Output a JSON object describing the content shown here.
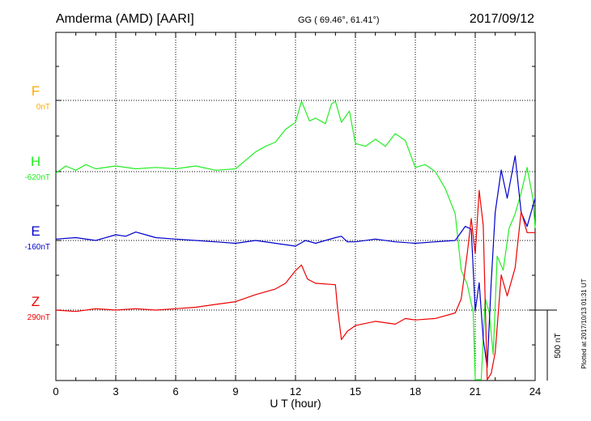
{
  "header": {
    "station": "Amderma (AMD)  [AARI]",
    "coords": "GG ( 69.46°,  61.41°)",
    "date": "2017/09/12"
  },
  "footer": {
    "plotted": "Plotted at 2017/10/13 01:31  UT"
  },
  "chart_data": {
    "type": "line",
    "xlabel": "U T (hour)",
    "xlim": [
      0,
      24
    ],
    "x_ticks": [
      "0",
      "3",
      "6",
      "9",
      "12",
      "15",
      "18",
      "21",
      "24"
    ],
    "scale_bar_label": "500 nT",
    "scale_bar_nT": 500,
    "grid": true,
    "series": [
      {
        "name": "F",
        "baseline_label": "0nT",
        "color": "#ffaa00",
        "x": [],
        "y": []
      },
      {
        "name": "H",
        "baseline_label": "-620nT",
        "color": "#22ee22",
        "x": [
          0,
          0.5,
          1,
          1.5,
          2,
          3,
          4,
          5,
          6,
          7,
          8,
          9,
          9.5,
          10,
          10.5,
          11,
          11.5,
          12,
          12.3,
          12.7,
          13,
          13.5,
          13.8,
          14,
          14.3,
          14.7,
          15,
          15.5,
          16,
          16.5,
          17,
          17.5,
          18,
          18.5,
          19,
          19.5,
          20,
          20.3,
          20.6,
          20.9,
          21.0,
          21.1,
          21.3,
          21.5,
          21.7,
          21.9,
          22.1,
          22.4,
          22.7,
          23,
          23.3,
          23.6,
          23.9,
          24
        ],
        "y": [
          -10,
          40,
          10,
          50,
          20,
          40,
          20,
          30,
          20,
          40,
          10,
          20,
          80,
          140,
          180,
          210,
          300,
          350,
          500,
          360,
          380,
          340,
          480,
          500,
          350,
          430,
          200,
          180,
          230,
          180,
          270,
          220,
          30,
          50,
          0,
          -120,
          -300,
          -700,
          -800,
          -1000,
          -1500,
          -2200,
          -1500,
          -900,
          -1000,
          -1300,
          -600,
          -700,
          -400,
          -300,
          -150,
          30,
          -200,
          -400
        ]
      },
      {
        "name": "E",
        "baseline_label": "-160nT",
        "color": "#0000cc",
        "x": [
          0,
          1,
          2,
          3,
          3.5,
          4,
          4.5,
          5,
          6,
          7,
          8,
          9,
          10,
          11,
          12,
          12.5,
          13,
          14,
          14.3,
          14.6,
          15,
          16,
          17,
          18,
          19,
          20,
          20.5,
          20.8,
          21.0,
          21.2,
          21.4,
          21.6,
          21.8,
          22.0,
          22.3,
          22.6,
          23,
          23.3,
          23.6,
          24
        ],
        "y": [
          10,
          20,
          0,
          40,
          30,
          60,
          40,
          20,
          10,
          0,
          -10,
          -20,
          0,
          -20,
          -40,
          0,
          -20,
          20,
          30,
          -10,
          -10,
          10,
          -10,
          -20,
          -10,
          0,
          100,
          80,
          -500,
          -300,
          -700,
          -900,
          -300,
          200,
          500,
          300,
          600,
          200,
          100,
          300
        ]
      },
      {
        "name": "Z",
        "baseline_label": "290nT",
        "color": "#ee0000",
        "x": [
          0,
          1,
          2,
          3,
          4,
          5,
          6,
          7,
          8,
          9,
          10,
          11,
          11.5,
          12,
          12.3,
          12.6,
          13,
          14,
          14.1,
          14.3,
          14.6,
          15,
          16,
          17,
          17.5,
          18,
          19,
          20,
          20.3,
          20.6,
          20.8,
          21.0,
          21.2,
          21.4,
          21.6,
          21.8,
          22.0,
          22.3,
          22.6,
          23,
          23.3,
          23.6,
          24
        ],
        "y": [
          0,
          -10,
          10,
          0,
          10,
          0,
          10,
          20,
          40,
          60,
          110,
          150,
          190,
          280,
          320,
          220,
          190,
          180,
          20,
          -210,
          -150,
          -110,
          -80,
          -100,
          -60,
          -70,
          -60,
          -20,
          80,
          400,
          650,
          400,
          850,
          600,
          -500,
          -450,
          -300,
          250,
          100,
          300,
          700,
          550,
          550
        ]
      }
    ]
  }
}
